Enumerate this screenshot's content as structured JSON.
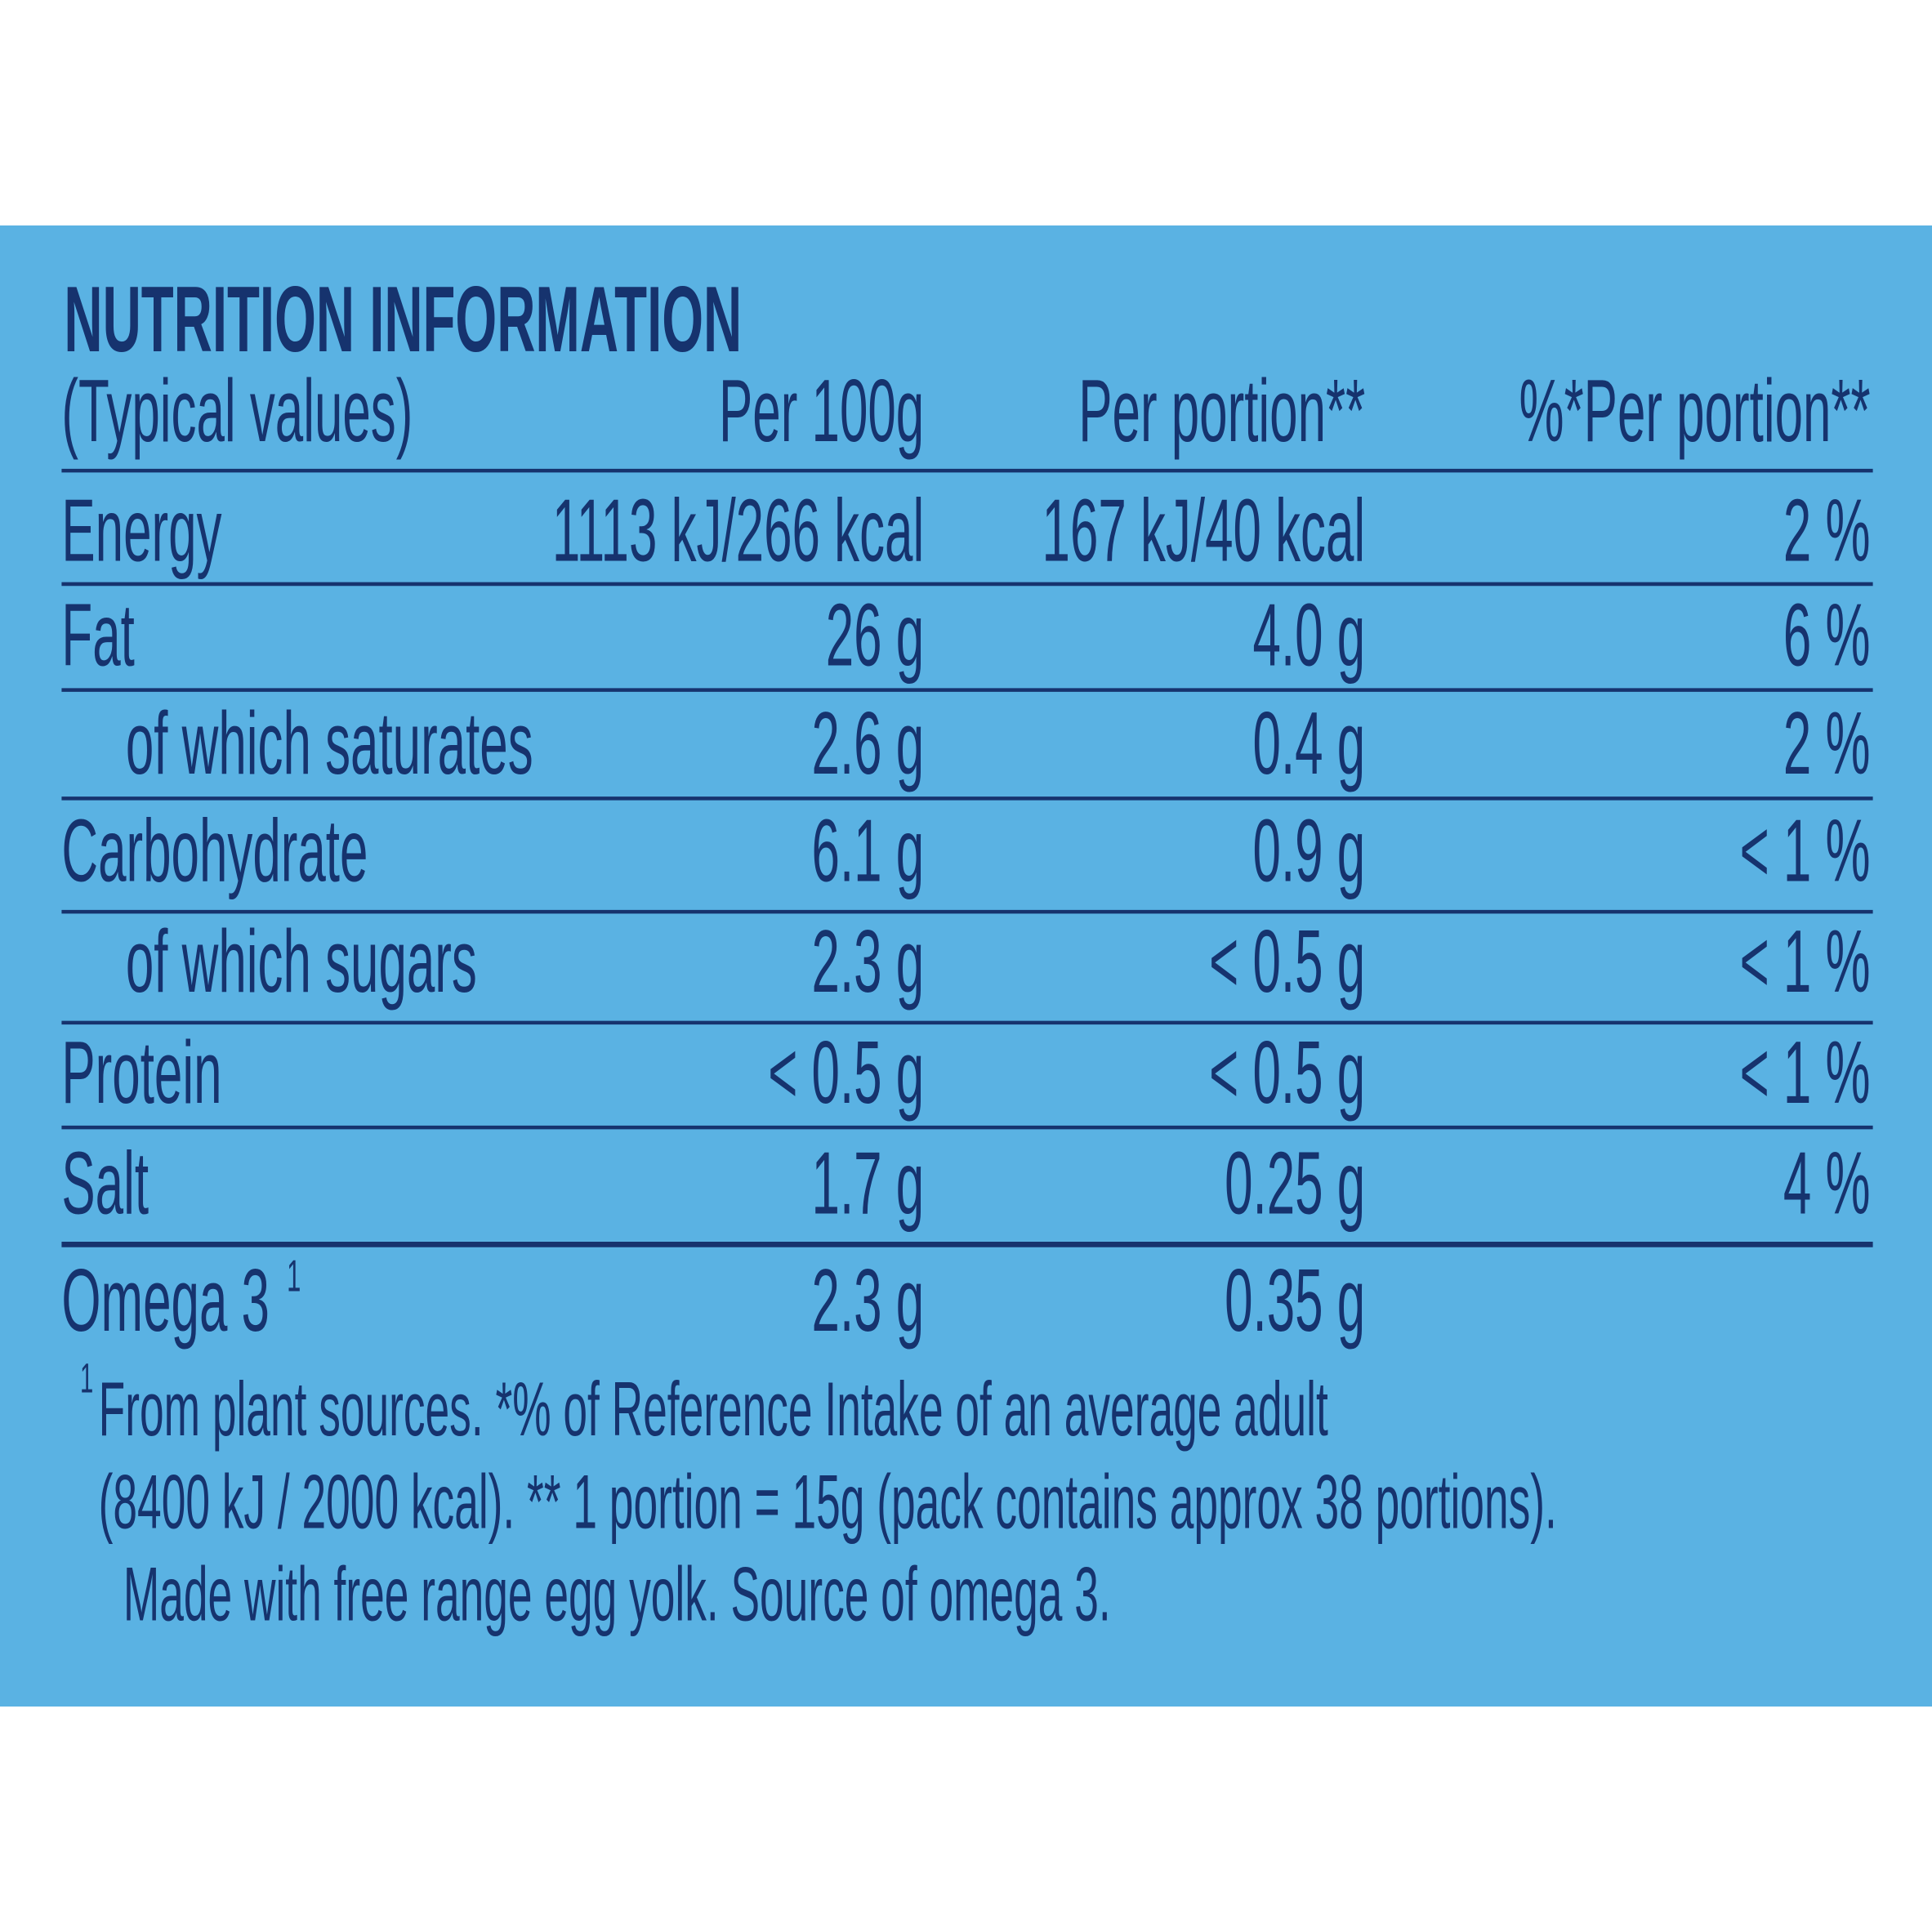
{
  "title": "NUTRITION INFORMATION",
  "table": {
    "header": [
      "(Typical values)",
      "Per 100g",
      "Per portion**",
      "%*Per portion**"
    ],
    "rows": [
      {
        "label": "Energy",
        "values": [
          "1113 kJ/266 kcal",
          "167 kJ/40 kcal",
          "2 %"
        ]
      },
      {
        "label": "Fat",
        "values": [
          "26 g",
          "4.0 g",
          "6 %"
        ]
      },
      {
        "label": "of which saturates",
        "values": [
          "2.6 g",
          "0.4 g",
          "2 %"
        ]
      },
      {
        "label": "Carbohydrate",
        "values": [
          "6.1 g",
          "0.9 g",
          "< 1 %"
        ]
      },
      {
        "label": "of which sugars",
        "values": [
          "2.3 g",
          "< 0.5 g",
          "< 1 %"
        ]
      },
      {
        "label": "Protein",
        "values": [
          "< 0.5 g",
          "< 0.5 g",
          "< 1 %"
        ]
      },
      {
        "label": "Salt",
        "values": [
          "1.7 g",
          "0.25 g",
          "4 %"
        ]
      },
      {
        "label": "Omega 3",
        "note": "1",
        "values": [
          "2.3 g",
          "0.35 g"
        ]
      }
    ]
  },
  "footnote": {
    "marker": "1",
    "lines": [
      "From plant sources. *% of Reference Intake of an average adult",
      "(8400 kJ / 2000 kcal). ** 1 portion = 15g (pack contains approx 38 portions).",
      "Made with free range egg yolk. Source of omega 3."
    ]
  }
}
